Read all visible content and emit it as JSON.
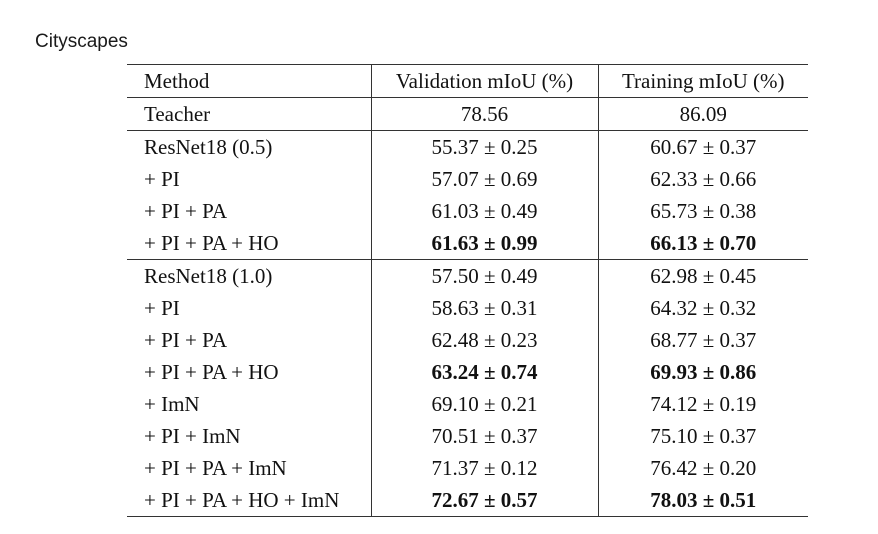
{
  "caption": "Cityscapes",
  "table": {
    "headers": [
      "Method",
      "Validation mIoU (%)",
      "Training mIoU (%)"
    ],
    "rows": [
      {
        "method": "Teacher",
        "val": "78.56",
        "train": "86.09",
        "val_bold": false,
        "train_bold": false
      },
      {
        "method": "ResNet18 (0.5)",
        "val": "55.37 ± 0.25",
        "train": "60.67 ± 0.37",
        "val_bold": false,
        "train_bold": false
      },
      {
        "method": "+ PI",
        "val": "57.07 ± 0.69",
        "train": "62.33 ± 0.66",
        "val_bold": false,
        "train_bold": false
      },
      {
        "method": "+ PI + PA",
        "val": "61.03 ± 0.49",
        "train": "65.73 ± 0.38",
        "val_bold": false,
        "train_bold": false
      },
      {
        "method": "+ PI + PA + HO",
        "val": "61.63 ± 0.99",
        "train": "66.13 ± 0.70",
        "val_bold": true,
        "train_bold": true
      },
      {
        "method": "ResNet18 (1.0)",
        "val": "57.50 ± 0.49",
        "train": "62.98 ± 0.45",
        "val_bold": false,
        "train_bold": false
      },
      {
        "method": "+ PI",
        "val": "58.63 ± 0.31",
        "train": "64.32 ± 0.32",
        "val_bold": false,
        "train_bold": false
      },
      {
        "method": "+ PI + PA",
        "val": "62.48 ± 0.23",
        "train": "68.77 ± 0.37",
        "val_bold": false,
        "train_bold": false
      },
      {
        "method": "+ PI + PA + HO",
        "val": "63.24 ± 0.74",
        "train": "69.93 ± 0.86",
        "val_bold": true,
        "train_bold": true
      },
      {
        "method": "+ ImN",
        "val": "69.10 ± 0.21",
        "train": "74.12 ± 0.19",
        "val_bold": false,
        "train_bold": false
      },
      {
        "method": "+ PI + ImN",
        "val": "70.51 ± 0.37",
        "train": "75.10 ± 0.37",
        "val_bold": false,
        "train_bold": false
      },
      {
        "method": "+ PI + PA + ImN",
        "val": "71.37 ± 0.12",
        "train": "76.42 ± 0.20",
        "val_bold": false,
        "train_bold": false
      },
      {
        "method": "+ PI + PA + HO + ImN",
        "val": "72.67 ± 0.57",
        "train": "78.03 ± 0.51",
        "val_bold": true,
        "train_bold": true
      }
    ]
  }
}
